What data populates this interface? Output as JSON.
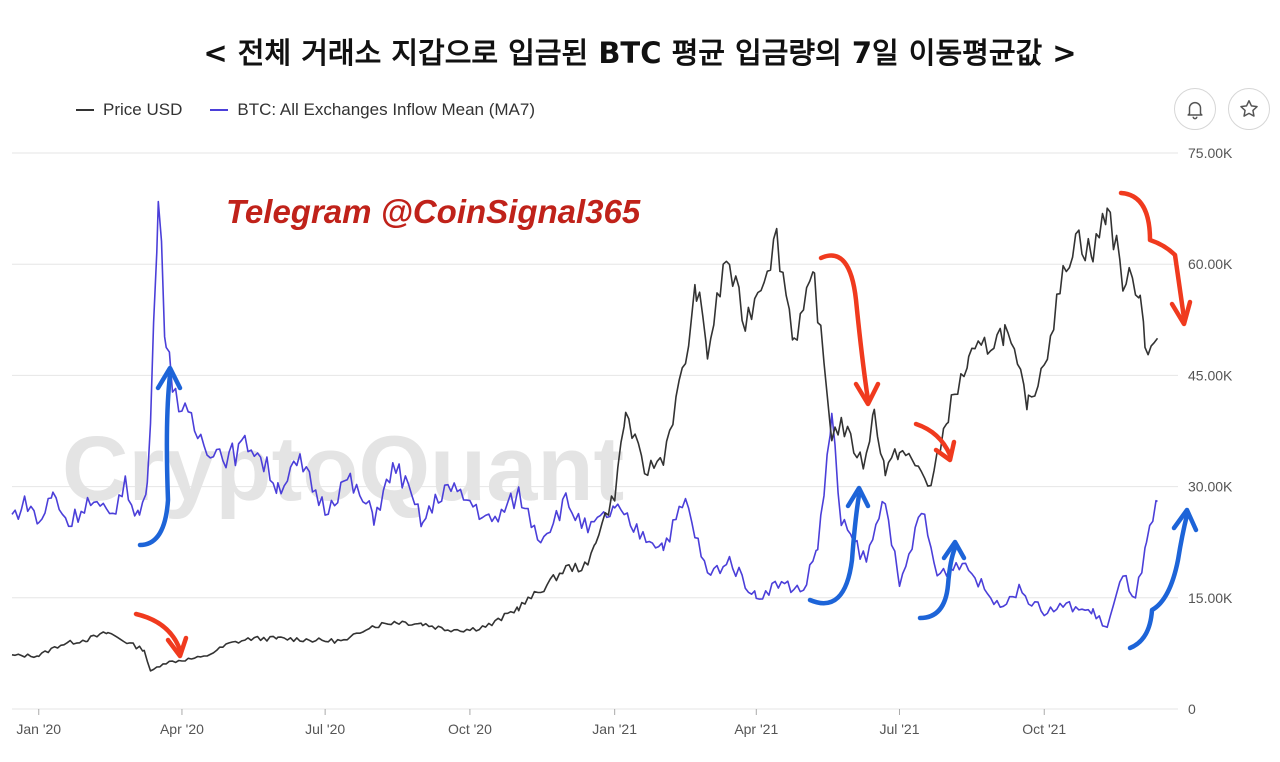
{
  "title": "< 전체 거래소 지갑으로 입금된 BTC 평균 입금량의 7일 이동평균값 >",
  "legend": [
    {
      "label": "Price USD",
      "color": "#333333"
    },
    {
      "label": "BTC: All Exchanges Inflow Mean (MA7)",
      "color": "#4b3fd9"
    }
  ],
  "icons": {
    "alert": "bell-icon",
    "favorite": "star-icon"
  },
  "watermark": "CryptoQuant",
  "promo_text": "Telegram @CoinSignal365",
  "annotation_colors": {
    "down_arrow": "#f03a1e",
    "up_arrow": "#1d64d8"
  },
  "chart_data": {
    "type": "line",
    "x_tick_labels": [
      "Jan '20",
      "Apr '20",
      "Jul '20",
      "Oct '20",
      "Jan '21",
      "Apr '21",
      "Jul '21",
      "Oct '21"
    ],
    "y_tick_labels": [
      "0",
      "15.00K",
      "30.00K",
      "45.00K",
      "60.00K",
      "75.00K"
    ],
    "ylim": [
      0,
      75000
    ],
    "xlim": [
      "2019-12-15",
      "2021-12-25"
    ],
    "grid": true,
    "legend_position": "top-left",
    "series": [
      {
        "name": "Price USD",
        "color": "#333333",
        "points": [
          [
            "2019-12-15",
            7200
          ],
          [
            "2020-01-01",
            7200
          ],
          [
            "2020-01-15",
            8700
          ],
          [
            "2020-02-01",
            9400
          ],
          [
            "2020-02-14",
            10300
          ],
          [
            "2020-03-01",
            8600
          ],
          [
            "2020-03-08",
            8000
          ],
          [
            "2020-03-12",
            5000
          ],
          [
            "2020-03-20",
            6200
          ],
          [
            "2020-04-01",
            6600
          ],
          [
            "2020-04-15",
            7000
          ],
          [
            "2020-05-01",
            8800
          ],
          [
            "2020-05-15",
            9500
          ],
          [
            "2020-06-01",
            9500
          ],
          [
            "2020-06-15",
            9400
          ],
          [
            "2020-07-01",
            9200
          ],
          [
            "2020-07-15",
            9200
          ],
          [
            "2020-07-27",
            11000
          ],
          [
            "2020-08-15",
            11800
          ],
          [
            "2020-09-01",
            11500
          ],
          [
            "2020-09-15",
            10800
          ],
          [
            "2020-10-01",
            10700
          ],
          [
            "2020-10-15",
            11400
          ],
          [
            "2020-11-01",
            13700
          ],
          [
            "2020-11-15",
            16000
          ],
          [
            "2020-12-01",
            19000
          ],
          [
            "2020-12-15",
            19200
          ],
          [
            "2020-12-20",
            23000
          ],
          [
            "2021-01-01",
            29000
          ],
          [
            "2021-01-08",
            40000
          ],
          [
            "2021-01-20",
            32000
          ],
          [
            "2021-02-01",
            34000
          ],
          [
            "2021-02-15",
            47000
          ],
          [
            "2021-02-22",
            57000
          ],
          [
            "2021-03-01",
            48000
          ],
          [
            "2021-03-13",
            61000
          ],
          [
            "2021-03-25",
            52000
          ],
          [
            "2021-04-14",
            63500
          ],
          [
            "2021-04-25",
            50000
          ],
          [
            "2021-05-08",
            58000
          ],
          [
            "2021-05-12",
            50000
          ],
          [
            "2021-05-19",
            37000
          ],
          [
            "2021-05-25",
            38500
          ],
          [
            "2021-06-08",
            33000
          ],
          [
            "2021-06-15",
            40000
          ],
          [
            "2021-06-22",
            32000
          ],
          [
            "2021-07-01",
            35000
          ],
          [
            "2021-07-15",
            32000
          ],
          [
            "2021-07-21",
            30000
          ],
          [
            "2021-08-01",
            40000
          ],
          [
            "2021-08-14",
            47000
          ],
          [
            "2021-09-06",
            51000
          ],
          [
            "2021-09-21",
            41000
          ],
          [
            "2021-10-01",
            47000
          ],
          [
            "2021-10-15",
            60000
          ],
          [
            "2021-10-21",
            64000
          ],
          [
            "2021-11-01",
            61000
          ],
          [
            "2021-11-10",
            68000
          ],
          [
            "2021-11-20",
            58000
          ],
          [
            "2021-12-01",
            57000
          ],
          [
            "2021-12-04",
            49000
          ],
          [
            "2021-12-12",
            50000
          ]
        ]
      },
      {
        "name": "BTC: All Exchanges Inflow Mean (MA7)",
        "color": "#4b3fd9",
        "points": [
          [
            "2019-12-15",
            26000
          ],
          [
            "2019-12-25",
            28000
          ],
          [
            "2020-01-01",
            25000
          ],
          [
            "2020-01-10",
            29000
          ],
          [
            "2020-01-20",
            25000
          ],
          [
            "2020-02-01",
            28000
          ],
          [
            "2020-02-15",
            26000
          ],
          [
            "2020-02-25",
            30000
          ],
          [
            "2020-03-05",
            26000
          ],
          [
            "2020-03-10",
            30000
          ],
          [
            "2020-03-14",
            50000
          ],
          [
            "2020-03-17",
            72000
          ],
          [
            "2020-03-22",
            48000
          ],
          [
            "2020-04-01",
            40000
          ],
          [
            "2020-04-15",
            36000
          ],
          [
            "2020-05-01",
            34000
          ],
          [
            "2020-05-15",
            36000
          ],
          [
            "2020-06-01",
            30000
          ],
          [
            "2020-06-15",
            33000
          ],
          [
            "2020-07-01",
            27000
          ],
          [
            "2020-07-15",
            31000
          ],
          [
            "2020-08-01",
            26000
          ],
          [
            "2020-08-15",
            33000
          ],
          [
            "2020-09-01",
            25000
          ],
          [
            "2020-09-15",
            30000
          ],
          [
            "2020-10-01",
            28000
          ],
          [
            "2020-10-15",
            25000
          ],
          [
            "2020-11-01",
            29000
          ],
          [
            "2020-11-15",
            23000
          ],
          [
            "2020-12-01",
            28000
          ],
          [
            "2020-12-15",
            24000
          ],
          [
            "2021-01-01",
            27000
          ],
          [
            "2021-01-15",
            24000
          ],
          [
            "2021-02-01",
            22000
          ],
          [
            "2021-02-15",
            28000
          ],
          [
            "2021-03-01",
            18000
          ],
          [
            "2021-03-15",
            20000
          ],
          [
            "2021-04-01",
            15000
          ],
          [
            "2021-04-15",
            17000
          ],
          [
            "2021-05-01",
            16000
          ],
          [
            "2021-05-10",
            22000
          ],
          [
            "2021-05-19",
            39000
          ],
          [
            "2021-05-25",
            25000
          ],
          [
            "2021-06-10",
            20000
          ],
          [
            "2021-06-22",
            29000
          ],
          [
            "2021-07-01",
            16000
          ],
          [
            "2021-07-15",
            27000
          ],
          [
            "2021-07-25",
            18000
          ],
          [
            "2021-08-10",
            20000
          ],
          [
            "2021-09-01",
            14000
          ],
          [
            "2021-09-15",
            16000
          ],
          [
            "2021-10-01",
            13000
          ],
          [
            "2021-10-15",
            14000
          ],
          [
            "2021-11-01",
            13000
          ],
          [
            "2021-11-10",
            11000
          ],
          [
            "2021-11-20",
            18000
          ],
          [
            "2021-11-28",
            15000
          ],
          [
            "2021-12-05",
            22000
          ],
          [
            "2021-12-12",
            28000
          ]
        ]
      }
    ]
  }
}
